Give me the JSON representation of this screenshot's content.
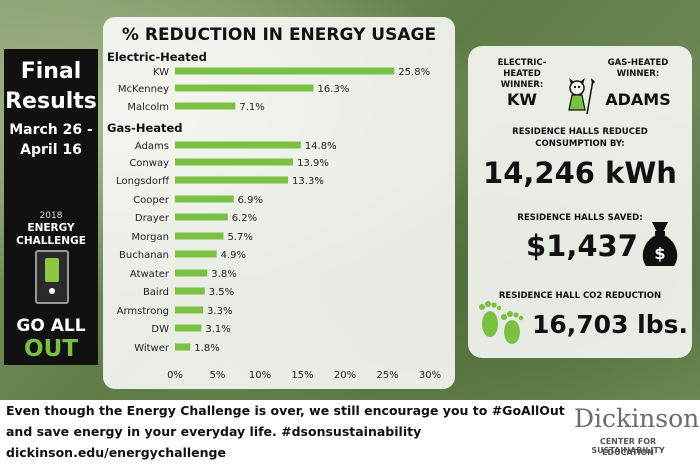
{
  "left": {
    "line1": "Final",
    "line2": "Results",
    "line3": "March 26 -",
    "line4": "April 16",
    "year": "2018",
    "ec_line1": "ENERGY",
    "ec_line2": "CHALLENGE",
    "go_all": "GO ALL",
    "out": "OUT"
  },
  "stats": {
    "electric_label": "ELECTRIC-HEATED WINNER:",
    "electric_winner": "KW",
    "gas_label": "GAS-HEATED WINNER:",
    "gas_winner": "ADAMS",
    "reduced_label": "RESIDENCE HALLS REDUCED CONSUMPTION BY:",
    "kwh": "14,246 kWh",
    "saved_label": "RESIDENCE HALLS SAVED:",
    "dollars": "$1,437",
    "co2_label": "RESIDENCE HALL CO2 REDUCTION",
    "co2": "16,703 lbs."
  },
  "bottom": {
    "line1": "Even though the Energy Challenge is over, we still encourage you to #GoAllOut",
    "line2": "and save energy in your everyday life. #dsonsustainability",
    "line3": "dickinson.edu/energychallenge",
    "logo": "Dickinson",
    "logo_sub1": "CENTER FOR SUSTAINABILITY",
    "logo_sub2": "EDUCATION"
  },
  "colors": {
    "bar": "#7ac142",
    "panel": "#ffffff"
  },
  "chart_data": {
    "type": "bar",
    "orientation": "horizontal",
    "title": "% REDUCTION IN ENERGY USAGE",
    "xlabel": "",
    "ylabel": "",
    "xlim": [
      0,
      30
    ],
    "ticks": [
      "0%",
      "5%",
      "10%",
      "15%",
      "20%",
      "25%",
      "30%"
    ],
    "tick_values": [
      0,
      5,
      10,
      15,
      20,
      25,
      30
    ],
    "groups": [
      {
        "name": "Electric-Heated",
        "categories": [
          "KW",
          "McKenney",
          "Malcolm"
        ],
        "values": [
          25.8,
          16.3,
          7.1
        ],
        "labels": [
          "25.8%",
          "16.3%",
          "7.1%"
        ]
      },
      {
        "name": "Gas-Heated",
        "categories": [
          "Adams",
          "Conway",
          "Longsdorff",
          "Cooper",
          "Drayer",
          "Morgan",
          "Buchanan",
          "Atwater",
          "Baird",
          "Armstrong",
          "DW",
          "Witwer"
        ],
        "values": [
          14.8,
          13.9,
          13.3,
          6.9,
          6.2,
          5.7,
          4.9,
          3.8,
          3.5,
          3.3,
          3.1,
          1.8
        ],
        "labels": [
          "14.8%",
          "13.9%",
          "13.3%",
          "6.9%",
          "6.2%",
          "5.7%",
          "4.9%",
          "3.8%",
          "3.5%",
          "3.3%",
          "3.1%",
          "1.8%"
        ]
      }
    ],
    "grid": false,
    "legend": "none"
  }
}
